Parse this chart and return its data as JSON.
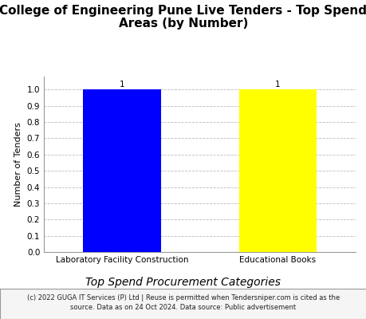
{
  "title_line1": "College of Engineering Pune Live Tenders - Top Spend",
  "title_line2": "Areas (by Number)",
  "categories": [
    "Laboratory Facility Construction",
    "Educational Books"
  ],
  "values": [
    1,
    1
  ],
  "bar_colors": [
    "#0000FF",
    "#FFFF00"
  ],
  "bar_labels": [
    "1",
    "1"
  ],
  "ylabel": "Number of Tenders",
  "xlabel": "Top Spend Procurement Categories",
  "yticks": [
    0.0,
    0.1,
    0.2,
    0.3,
    0.4,
    0.5,
    0.6,
    0.7,
    0.8,
    0.9,
    1.0
  ],
  "title_fontsize": 11,
  "xlabel_fontsize": 10,
  "ylabel_fontsize": 8,
  "tick_fontsize": 7.5,
  "bar_label_fontsize": 7.5,
  "footer_text_line1": "(c) 2022 GUGA IT Services (P) Ltd | Reuse is permitted when Tendersniper.com is cited as the",
  "footer_text_line2": "source. Data as on 24 Oct 2024. Data source: Public advertisement",
  "footer_fontsize": 6.0,
  "background_color": "#ffffff",
  "grid_color": "#bbbbbb",
  "footer_bg": "#f5f5f5"
}
